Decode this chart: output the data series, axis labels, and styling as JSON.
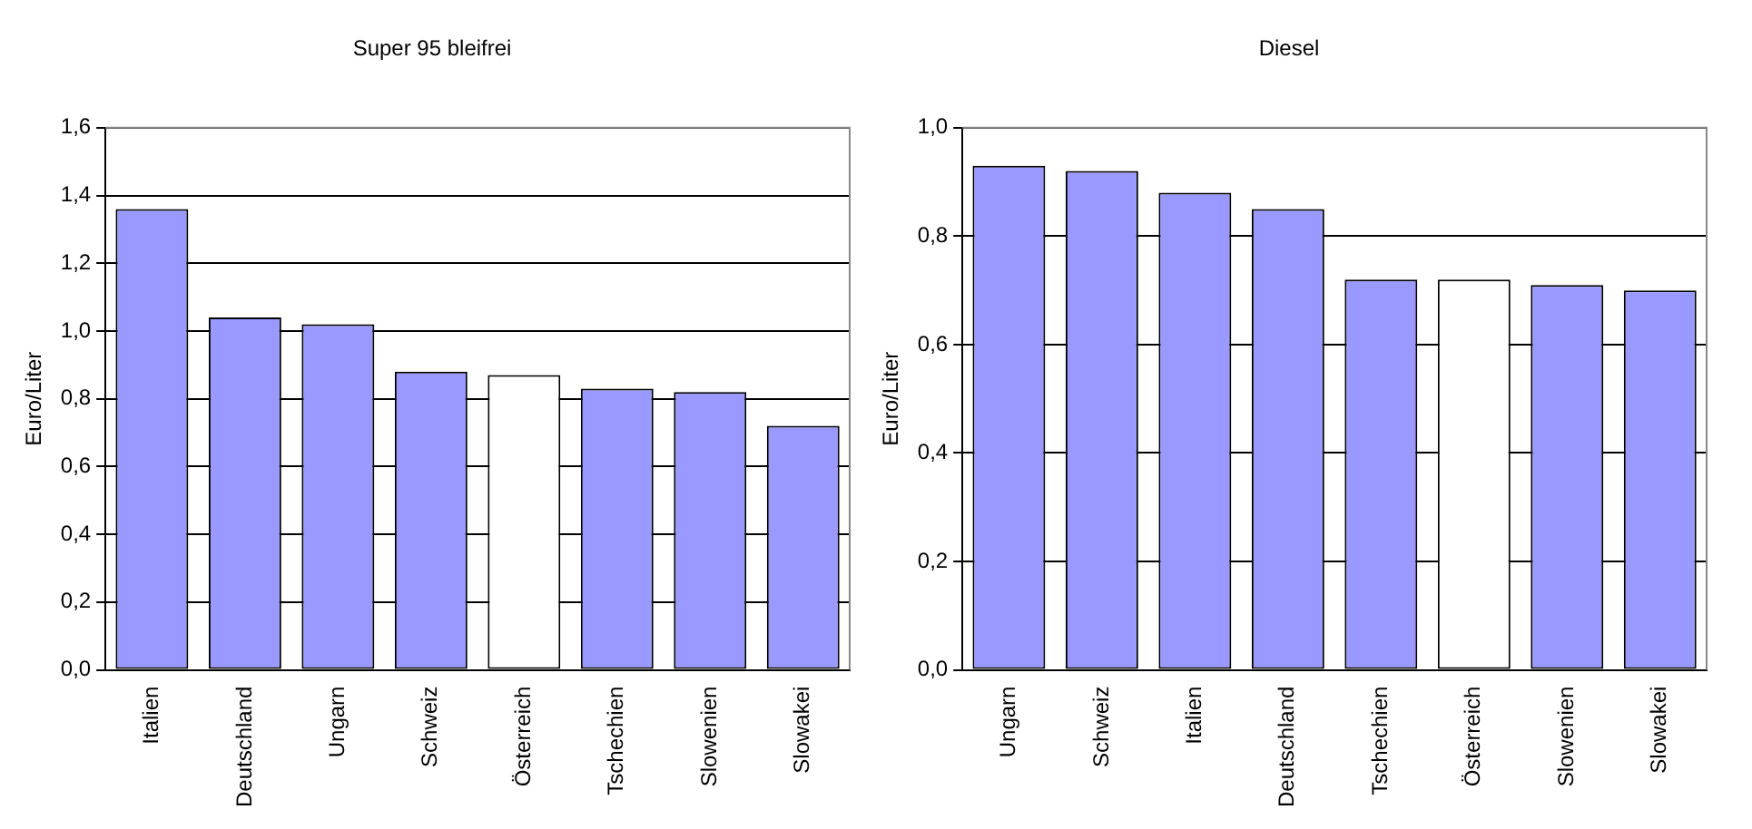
{
  "chart_data": [
    {
      "type": "bar",
      "title": "Super 95 bleifrei",
      "ylabel": "Euro/Liter",
      "categories": [
        "Italien",
        "Deutschland",
        "Ungarn",
        "Schweiz",
        "Österreich",
        "Tschechien",
        "Slowenien",
        "Slowakei"
      ],
      "values": [
        1.36,
        1.04,
        1.02,
        0.88,
        0.87,
        0.83,
        0.82,
        0.72
      ],
      "colors": [
        "#9999ff",
        "#9999ff",
        "#9999ff",
        "#9999ff",
        "#ffffff",
        "#9999ff",
        "#9999ff",
        "#9999ff"
      ],
      "ylim": [
        0,
        1.6
      ],
      "yticks": [
        {
          "value": 0,
          "label": "0,0"
        },
        {
          "value": 0.2,
          "label": "0,2"
        },
        {
          "value": 0.4,
          "label": "0,4"
        },
        {
          "value": 0.6,
          "label": "0,6"
        },
        {
          "value": 0.8,
          "label": "0,8"
        },
        {
          "value": 1.0,
          "label": "1,0"
        },
        {
          "value": 1.2,
          "label": "1,2"
        },
        {
          "value": 1.4,
          "label": "1,4"
        },
        {
          "value": 1.6,
          "label": "1,6"
        }
      ],
      "grid": "y"
    },
    {
      "type": "bar",
      "title": "Diesel",
      "ylabel": "Euro/Liter",
      "categories": [
        "Ungarn",
        "Schweiz",
        "Italien",
        "Deutschland",
        "Tschechien",
        "Österreich",
        "Slowenien",
        "Slowakei"
      ],
      "values": [
        0.93,
        0.92,
        0.88,
        0.85,
        0.72,
        0.72,
        0.71,
        0.7
      ],
      "colors": [
        "#9999ff",
        "#9999ff",
        "#9999ff",
        "#9999ff",
        "#9999ff",
        "#ffffff",
        "#9999ff",
        "#9999ff"
      ],
      "ylim": [
        0,
        1.0
      ],
      "yticks": [
        {
          "value": 0,
          "label": "0,0"
        },
        {
          "value": 0.2,
          "label": "0,2"
        },
        {
          "value": 0.4,
          "label": "0,4"
        },
        {
          "value": 0.6,
          "label": "0,6"
        },
        {
          "value": 0.8,
          "label": "0,8"
        },
        {
          "value": 1.0,
          "label": "1,0"
        }
      ],
      "grid": "y"
    }
  ]
}
